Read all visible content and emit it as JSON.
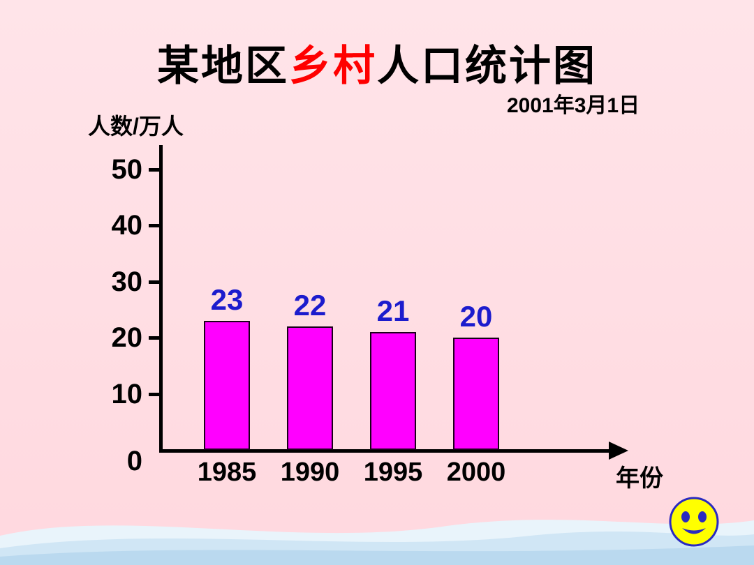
{
  "title": {
    "prefix": "某地区",
    "highlight": "乡村",
    "suffix": "人口统计图",
    "highlight_color": "#ff0000"
  },
  "date_label": "2001年3月1日",
  "chart_data": {
    "type": "bar",
    "title": "某地区乡村人口统计图",
    "subtitle_date": "2001年3月1日",
    "ylabel": "人数/万人",
    "xlabel": "年份",
    "categories": [
      "1985",
      "1990",
      "1995",
      "2000"
    ],
    "values": [
      23,
      22,
      21,
      20
    ],
    "yticks": [
      0,
      10,
      20,
      30,
      40,
      50
    ],
    "ylim": [
      0,
      50
    ],
    "bar_color": "#ff00ff",
    "value_label_color": "#1c1ccd",
    "axis_color": "#000000",
    "background_color": "#ffdfe4",
    "grid": false,
    "legend": "none"
  },
  "decor": {
    "smiley_fill": "#ffff00",
    "smiley_stroke": "#2a2ac0",
    "wave_color": "#c9e2f3"
  }
}
